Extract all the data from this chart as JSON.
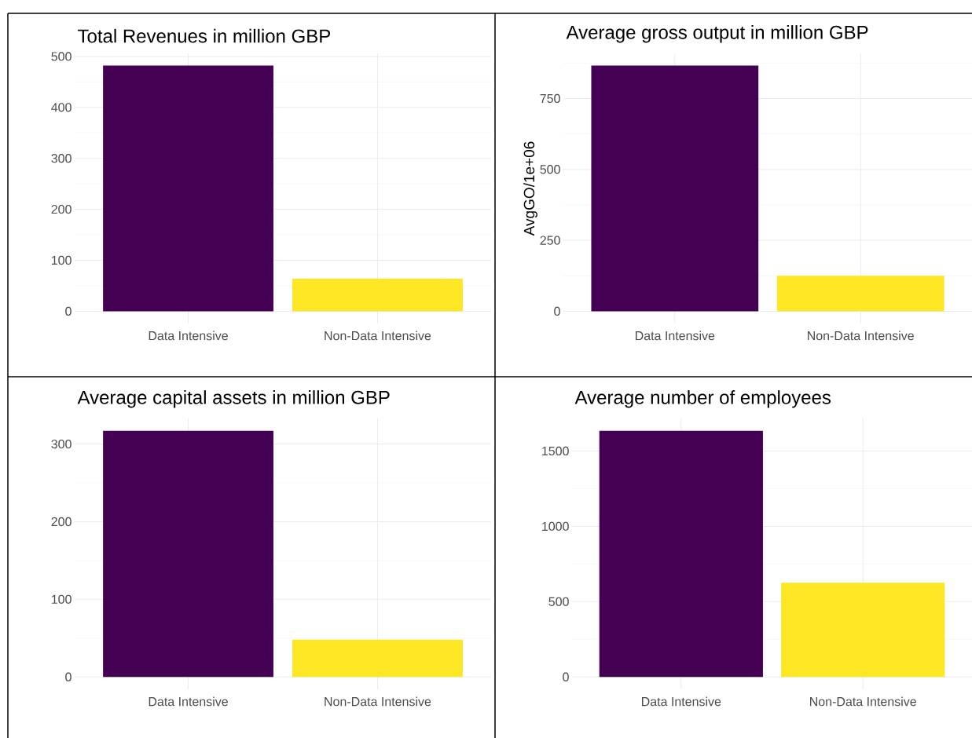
{
  "chart_data": [
    {
      "type": "bar",
      "title": "Total Revenues in million GBP",
      "categories": [
        "Data Intensive",
        "Non-Data Intensive"
      ],
      "values": [
        482,
        64
      ],
      "colors": [
        "#440154",
        "#fde725"
      ],
      "ylim": [
        -24,
        506
      ],
      "yticks": [
        0,
        100,
        200,
        300,
        400,
        500
      ],
      "grid": true
    },
    {
      "type": "bar",
      "title": "Average gross output in million GBP",
      "ylabel": "AvgGO/1e+06",
      "categories": [
        "Data Intensive",
        "Non-Data Intensive"
      ],
      "values": [
        866,
        125
      ],
      "colors": [
        "#440154",
        "#fde725"
      ],
      "ylim": [
        -43,
        909
      ],
      "yticks": [
        0,
        250,
        500,
        750
      ],
      "grid": true
    },
    {
      "type": "bar",
      "title": "Average capital assets in million GBP",
      "categories": [
        "Data Intensive",
        "Non-Data Intensive"
      ],
      "values": [
        317,
        48
      ],
      "colors": [
        "#440154",
        "#fde725"
      ],
      "ylim": [
        -16,
        333
      ],
      "yticks": [
        0,
        100,
        200,
        300
      ],
      "grid": true
    },
    {
      "type": "bar",
      "title": "Average number of employees",
      "categories": [
        "Data Intensive",
        "Non-Data Intensive"
      ],
      "values": [
        1634,
        625
      ],
      "colors": [
        "#440154",
        "#fde725"
      ],
      "ylim": [
        -82,
        1716
      ],
      "yticks": [
        0,
        500,
        1000,
        1500
      ],
      "grid": true
    }
  ]
}
